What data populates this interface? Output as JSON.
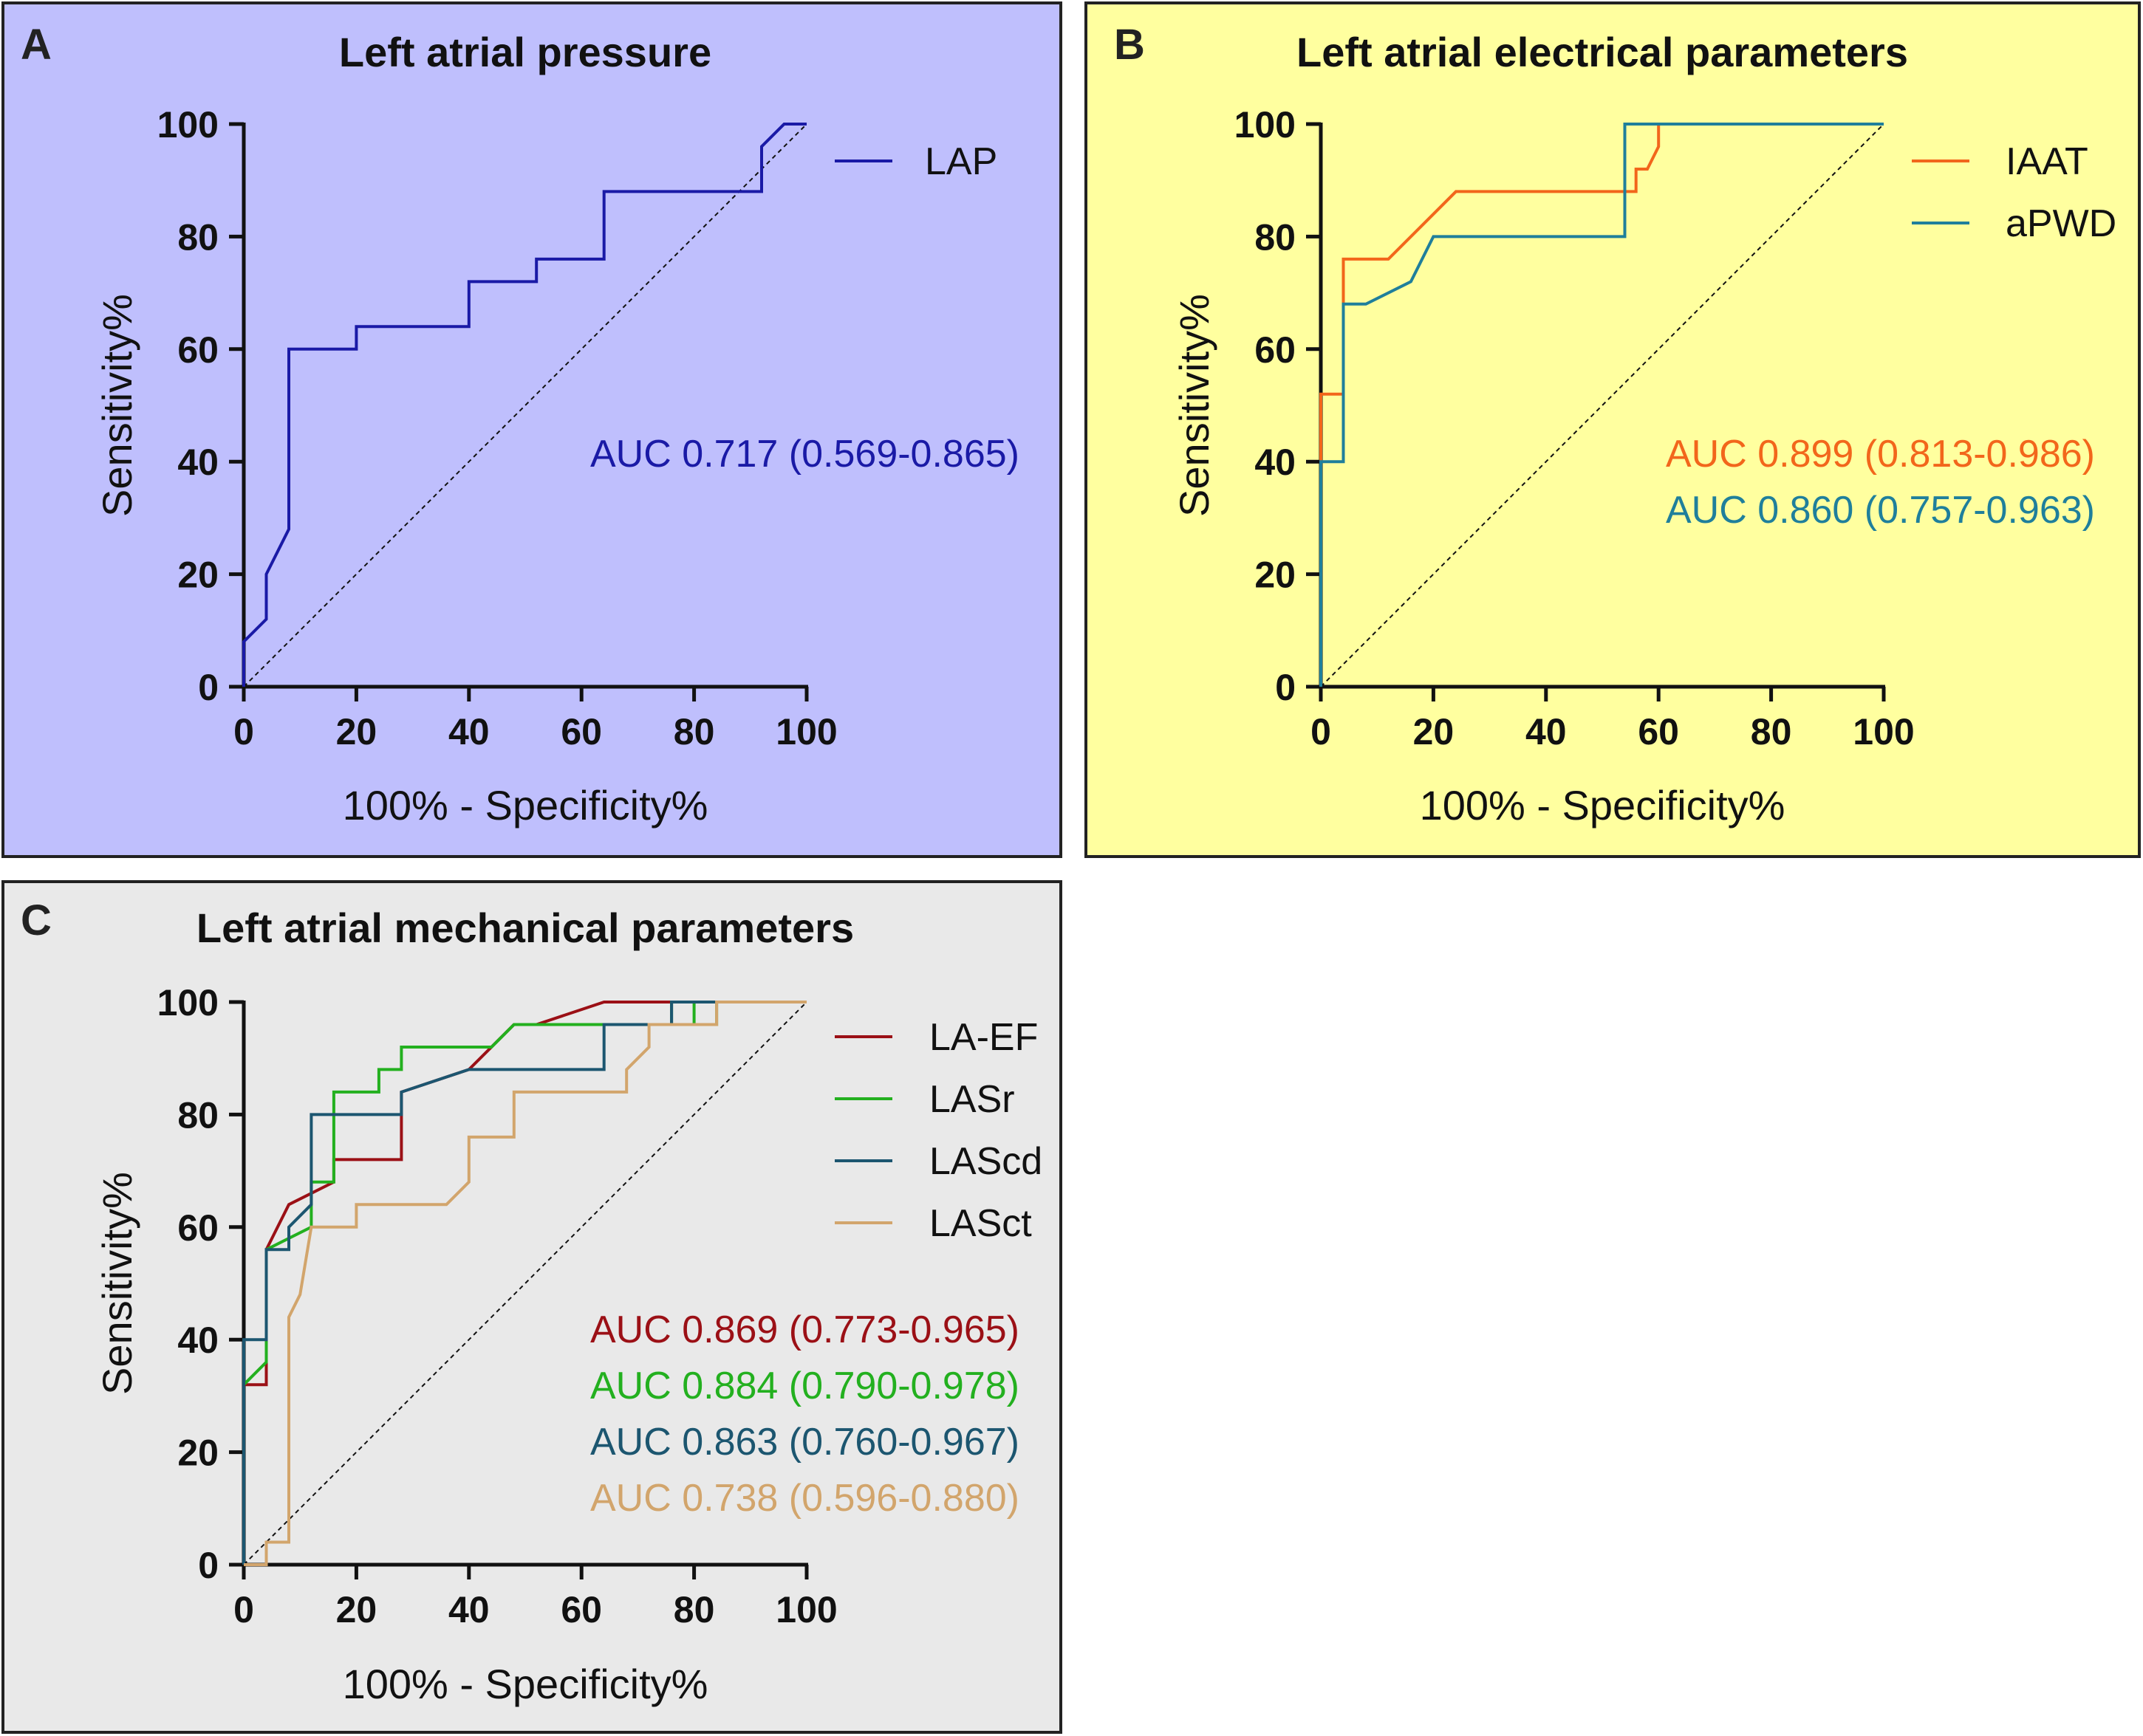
{
  "chart_data": [
    {
      "type": "line",
      "panel": "A",
      "title": "Left atrial pressure",
      "xlabel": "100% - Specificity%",
      "ylabel": "Sensitivity%",
      "xlim": [
        0,
        100
      ],
      "ylim": [
        0,
        100
      ],
      "xticks": [
        "0",
        "20",
        "40",
        "60",
        "80",
        "100"
      ],
      "yticks": [
        "0",
        "20",
        "40",
        "60",
        "80",
        "100"
      ],
      "background": "#bfbffd",
      "legend_position": "top-right",
      "reference_line": "diagonal",
      "series": [
        {
          "name": "LAP",
          "color": "#1a1aa6",
          "auc_text": "AUC 0.717 (0.569-0.865)",
          "points": [
            [
              0,
              0
            ],
            [
              0,
              8
            ],
            [
              4,
              12
            ],
            [
              4,
              20
            ],
            [
              8,
              28
            ],
            [
              8,
              60
            ],
            [
              20,
              60
            ],
            [
              20,
              64
            ],
            [
              40,
              64
            ],
            [
              40,
              72
            ],
            [
              52,
              72
            ],
            [
              52,
              76
            ],
            [
              64,
              76
            ],
            [
              64,
              88
            ],
            [
              92,
              88
            ],
            [
              92,
              96
            ],
            [
              96,
              100
            ],
            [
              100,
              100
            ]
          ]
        }
      ]
    },
    {
      "type": "line",
      "panel": "B",
      "title": "Left atrial electrical parameters",
      "xlabel": "100% - Specificity%",
      "ylabel": "Sensitivity%",
      "xlim": [
        0,
        100
      ],
      "ylim": [
        0,
        100
      ],
      "xticks": [
        "0",
        "20",
        "40",
        "60",
        "80",
        "100"
      ],
      "yticks": [
        "0",
        "20",
        "40",
        "60",
        "80",
        "100"
      ],
      "background": "#ffff9f",
      "legend_position": "top-right",
      "reference_line": "diagonal",
      "series": [
        {
          "name": "IAAT",
          "color": "#f2661b",
          "auc_text": "AUC 0.899 (0.813-0.986)",
          "points": [
            [
              0,
              0
            ],
            [
              0,
              52
            ],
            [
              4,
              52
            ],
            [
              4,
              76
            ],
            [
              12,
              76
            ],
            [
              20,
              84
            ],
            [
              24,
              88
            ],
            [
              56,
              88
            ],
            [
              56,
              92
            ],
            [
              58,
              92
            ],
            [
              60,
              96
            ],
            [
              60,
              100
            ],
            [
              100,
              100
            ]
          ]
        },
        {
          "name": "aPWD",
          "color": "#1f7f9b",
          "auc_text": "AUC 0.860 (0.757-0.963)",
          "points": [
            [
              0,
              0
            ],
            [
              0,
              40
            ],
            [
              4,
              40
            ],
            [
              4,
              68
            ],
            [
              8,
              68
            ],
            [
              16,
              72
            ],
            [
              20,
              80
            ],
            [
              54,
              80
            ],
            [
              54,
              100
            ],
            [
              100,
              100
            ]
          ]
        }
      ]
    },
    {
      "type": "line",
      "panel": "C",
      "title": "Left atrial mechanical parameters",
      "xlabel": "100% - Specificity%",
      "ylabel": "Sensitivity%",
      "xlim": [
        0,
        100
      ],
      "ylim": [
        0,
        100
      ],
      "xticks": [
        "0",
        "20",
        "40",
        "60",
        "80",
        "100"
      ],
      "yticks": [
        "0",
        "20",
        "40",
        "60",
        "80",
        "100"
      ],
      "background": "#e9e9e9",
      "legend_position": "top-right",
      "reference_line": "diagonal",
      "series": [
        {
          "name": "LA-EF",
          "color": "#9b1016",
          "auc_text": "AUC 0.869 (0.773-0.965)",
          "points": [
            [
              0,
              0
            ],
            [
              0,
              32
            ],
            [
              4,
              32
            ],
            [
              4,
              56
            ],
            [
              8,
              64
            ],
            [
              16,
              68
            ],
            [
              16,
              72
            ],
            [
              28,
              72
            ],
            [
              28,
              84
            ],
            [
              40,
              88
            ],
            [
              48,
              96
            ],
            [
              52,
              96
            ],
            [
              64,
              100
            ],
            [
              100,
              100
            ]
          ]
        },
        {
          "name": "LASr",
          "color": "#23b01f",
          "auc_text": "AUC 0.884 (0.790-0.978)",
          "points": [
            [
              0,
              0
            ],
            [
              0,
              32
            ],
            [
              4,
              36
            ],
            [
              4,
              56
            ],
            [
              12,
              60
            ],
            [
              12,
              68
            ],
            [
              16,
              68
            ],
            [
              16,
              84
            ],
            [
              24,
              84
            ],
            [
              24,
              88
            ],
            [
              28,
              88
            ],
            [
              28,
              92
            ],
            [
              44,
              92
            ],
            [
              48,
              96
            ],
            [
              76,
              96
            ],
            [
              76,
              100
            ],
            [
              80,
              100
            ],
            [
              80,
              96
            ],
            [
              84,
              96
            ],
            [
              84,
              100
            ],
            [
              100,
              100
            ]
          ]
        },
        {
          "name": "LAScd",
          "color": "#1c5670",
          "auc_text": "AUC 0.863 (0.760-0.967)",
          "points": [
            [
              0,
              0
            ],
            [
              0,
              40
            ],
            [
              4,
              40
            ],
            [
              4,
              56
            ],
            [
              8,
              56
            ],
            [
              8,
              60
            ],
            [
              12,
              64
            ],
            [
              12,
              80
            ],
            [
              28,
              80
            ],
            [
              28,
              84
            ],
            [
              40,
              88
            ],
            [
              64,
              88
            ],
            [
              64,
              96
            ],
            [
              76,
              96
            ],
            [
              76,
              100
            ],
            [
              100,
              100
            ]
          ]
        },
        {
          "name": "LASct",
          "color": "#d2a56c",
          "auc_text": "AUC 0.738 (0.596-0.880)",
          "points": [
            [
              0,
              0
            ],
            [
              4,
              0
            ],
            [
              4,
              4
            ],
            [
              8,
              4
            ],
            [
              8,
              44
            ],
            [
              10,
              48
            ],
            [
              12,
              60
            ],
            [
              20,
              60
            ],
            [
              20,
              64
            ],
            [
              36,
              64
            ],
            [
              40,
              68
            ],
            [
              40,
              76
            ],
            [
              48,
              76
            ],
            [
              48,
              84
            ],
            [
              68,
              84
            ],
            [
              68,
              88
            ],
            [
              72,
              92
            ],
            [
              72,
              96
            ],
            [
              84,
              96
            ],
            [
              84,
              100
            ],
            [
              100,
              100
            ]
          ]
        }
      ]
    }
  ]
}
